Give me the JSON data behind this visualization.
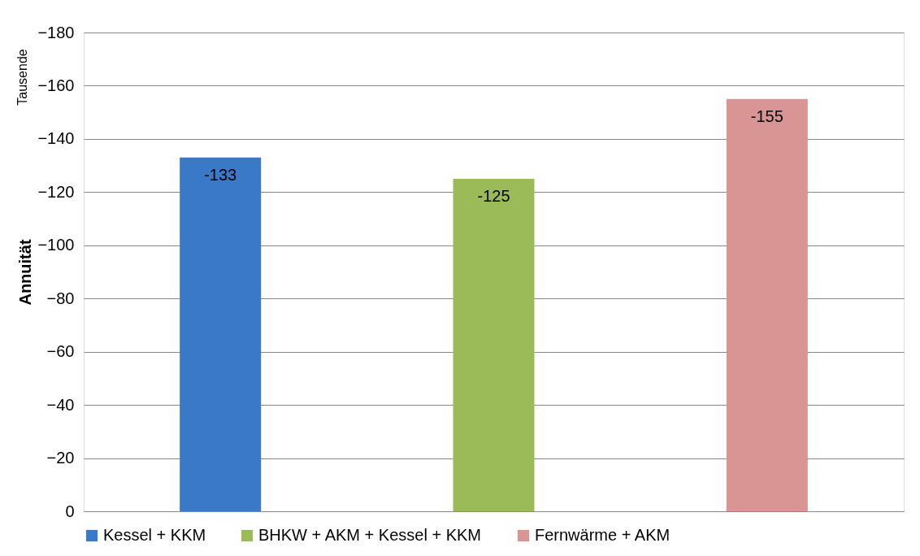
{
  "chart_data": {
    "type": "bar",
    "ylabel": "Annuität",
    "annotations": [
      "Tausende"
    ],
    "categories": [
      null,
      null,
      null
    ],
    "series": [
      {
        "name": "Kessel + KKM",
        "color": "#3a78c8",
        "values": [
          -133,
          null,
          null
        ]
      },
      {
        "name": "BHKW + AKM + Kessel + KKM",
        "color": "#9bbb59",
        "values": [
          null,
          -125,
          null
        ]
      },
      {
        "name": "Fernwärme + AKM",
        "color": "#d99594",
        "values": [
          null,
          null,
          -155
        ]
      }
    ],
    "ylim": [
      0,
      -180
    ],
    "yticks": [
      0,
      -20,
      -40,
      -60,
      -80,
      -100,
      -120,
      -140,
      -160,
      -180
    ],
    "grid": "y",
    "legend": "bottom",
    "data_labels": true
  }
}
